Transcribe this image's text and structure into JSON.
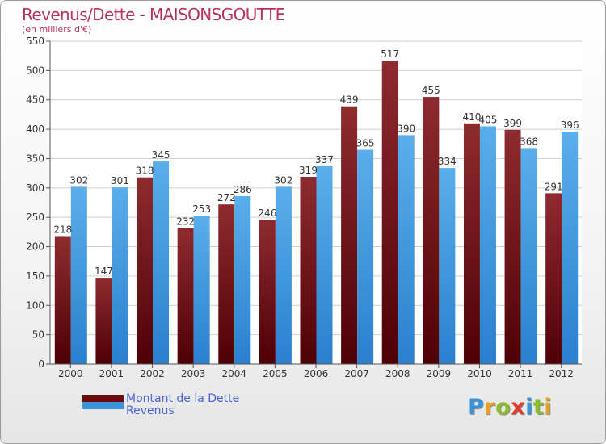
{
  "chart_data": {
    "type": "bar",
    "title": "Revenus/Dette - MAISONSGOUTTE",
    "subtitle": "(en milliers d'€)",
    "categories": [
      "2000",
      "2001",
      "2002",
      "2003",
      "2004",
      "2005",
      "2006",
      "2007",
      "2008",
      "2009",
      "2010",
      "2011",
      "2012"
    ],
    "series": [
      {
        "name": "Montant de la Dette",
        "color": "#8b1e22",
        "values": [
          218,
          147,
          318,
          232,
          272,
          246,
          319,
          439,
          517,
          455,
          410,
          399,
          291
        ]
      },
      {
        "name": "Revenus",
        "color": "#3a93d9",
        "values": [
          302,
          301,
          345,
          253,
          286,
          302,
          337,
          365,
          390,
          334,
          405,
          368,
          396
        ]
      }
    ],
    "ylim": [
      0,
      550
    ],
    "yticks": [
      0,
      50,
      100,
      150,
      200,
      250,
      300,
      350,
      400,
      450,
      500,
      550
    ],
    "grid": true,
    "legend_position": "bottom-left",
    "xlabel": "",
    "ylabel": ""
  },
  "logo": {
    "letters": [
      "P",
      "r",
      "o",
      "x",
      "i",
      "t",
      "i"
    ],
    "colors": [
      "#3a93d9",
      "#e6a21f",
      "#8bbf2a",
      "#e23b2e",
      "#3a93d9",
      "#8bbf2a",
      "#e6a21f"
    ]
  }
}
